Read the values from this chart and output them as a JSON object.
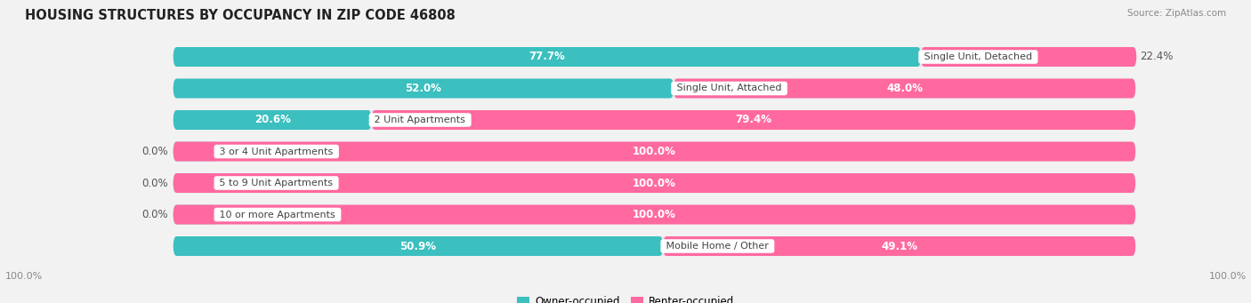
{
  "title": "HOUSING STRUCTURES BY OCCUPANCY IN ZIP CODE 46808",
  "source": "Source: ZipAtlas.com",
  "categories": [
    "Single Unit, Detached",
    "Single Unit, Attached",
    "2 Unit Apartments",
    "3 or 4 Unit Apartments",
    "5 to 9 Unit Apartments",
    "10 or more Apartments",
    "Mobile Home / Other"
  ],
  "owner_pct": [
    77.7,
    52.0,
    20.6,
    0.0,
    0.0,
    0.0,
    50.9
  ],
  "renter_pct": [
    22.4,
    48.0,
    79.4,
    100.0,
    100.0,
    100.0,
    49.1
  ],
  "owner_color": "#3bbfbf",
  "renter_color": "#ff69a0",
  "owner_color_zero": "#9ed8d8",
  "bg_color": "#f2f2f2",
  "bar_bg": "#e8e8ec",
  "bar_height": 0.62,
  "title_fontsize": 10.5,
  "label_fontsize": 8.5,
  "source_fontsize": 7.5,
  "legend_fontsize": 8.5,
  "bottom_label_color": "#888888",
  "label_outside_color": "#555555",
  "label_inside_color": "#ffffff",
  "center_label_color": "#444444"
}
